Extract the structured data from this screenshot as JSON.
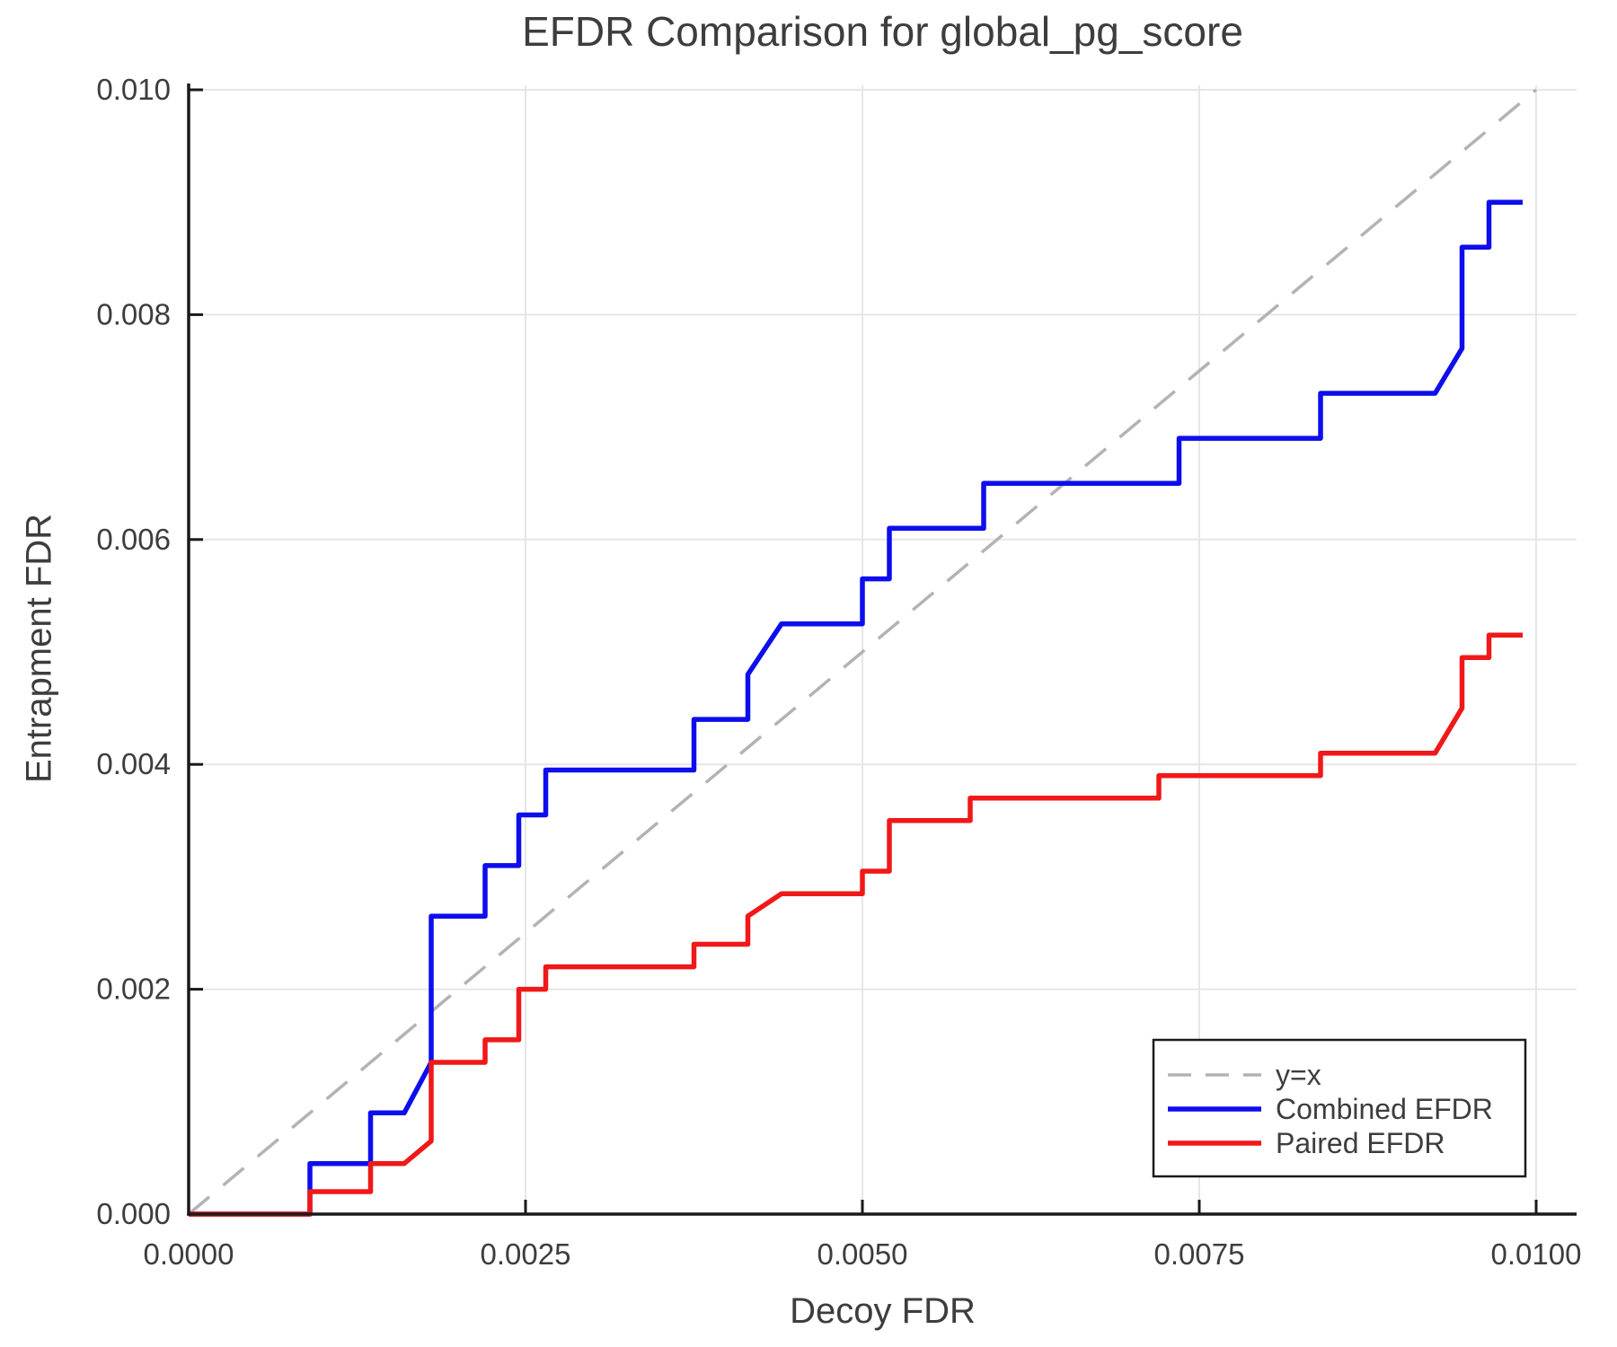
{
  "chart_data": {
    "type": "line",
    "title": "EFDR Comparison for global_pg_score",
    "xlabel": "Decoy FDR",
    "ylabel": "Entrapment FDR",
    "xlim": [
      0,
      0.0103
    ],
    "ylim": [
      0,
      0.01006
    ],
    "grid": true,
    "x_ticks": [
      0.0,
      0.0025,
      0.005,
      0.0075,
      0.01
    ],
    "x_tick_labels": [
      "0.0000",
      "0.0025",
      "0.0050",
      "0.0075",
      "0.0100"
    ],
    "y_ticks": [
      0.0,
      0.002,
      0.004,
      0.006,
      0.008,
      0.01
    ],
    "y_tick_labels": [
      "0.000",
      "0.002",
      "0.004",
      "0.006",
      "0.008",
      "0.010"
    ],
    "legend_position": "lower right",
    "colors": {
      "text": "#3d3d3d",
      "spine": "#1a1a1a",
      "grid": "#e6e6e6",
      "legend_border": "#1a1a1a",
      "identity_line": "#b3b3b3",
      "combined": "#0d0dee",
      "paired": "#f01818"
    },
    "series": [
      {
        "name": "y=x",
        "color": "#b3b3b3",
        "dashed": true,
        "points": [
          [
            0,
            0
          ],
          [
            0.01,
            0.01
          ]
        ]
      },
      {
        "name": "Combined EFDR",
        "color": "#0d0dee",
        "dashed": false,
        "points": [
          [
            0,
            0
          ],
          [
            0.0009,
            0
          ],
          [
            0.0009,
            0.00045
          ],
          [
            0.00135,
            0.00045
          ],
          [
            0.00135,
            0.0009
          ],
          [
            0.0016,
            0.0009
          ],
          [
            0.0018,
            0.00135
          ],
          [
            0.0018,
            0.00265
          ],
          [
            0.0022,
            0.00265
          ],
          [
            0.0022,
            0.0031
          ],
          [
            0.00245,
            0.0031
          ],
          [
            0.00245,
            0.00355
          ],
          [
            0.00265,
            0.00355
          ],
          [
            0.00265,
            0.00395
          ],
          [
            0.00375,
            0.00395
          ],
          [
            0.00375,
            0.0044
          ],
          [
            0.00415,
            0.0044
          ],
          [
            0.00415,
            0.0048
          ],
          [
            0.0044,
            0.00525
          ],
          [
            0.005,
            0.00525
          ],
          [
            0.005,
            0.00565
          ],
          [
            0.0052,
            0.00565
          ],
          [
            0.0052,
            0.0061
          ],
          [
            0.0059,
            0.0061
          ],
          [
            0.0059,
            0.0065
          ],
          [
            0.00735,
            0.0065
          ],
          [
            0.00735,
            0.0069
          ],
          [
            0.0084,
            0.0069
          ],
          [
            0.0084,
            0.0073
          ],
          [
            0.00925,
            0.0073
          ],
          [
            0.00945,
            0.0077
          ],
          [
            0.00945,
            0.0086
          ],
          [
            0.00965,
            0.0086
          ],
          [
            0.00965,
            0.009
          ],
          [
            0.0099,
            0.009
          ]
        ]
      },
      {
        "name": "Paired EFDR",
        "color": "#f01818",
        "dashed": false,
        "points": [
          [
            0,
            0
          ],
          [
            0.0009,
            0
          ],
          [
            0.0009,
            0.0002
          ],
          [
            0.00135,
            0.0002
          ],
          [
            0.00135,
            0.00045
          ],
          [
            0.0016,
            0.00045
          ],
          [
            0.0018,
            0.00065
          ],
          [
            0.0018,
            0.00135
          ],
          [
            0.0022,
            0.00135
          ],
          [
            0.0022,
            0.00155
          ],
          [
            0.00245,
            0.00155
          ],
          [
            0.00245,
            0.002
          ],
          [
            0.00265,
            0.002
          ],
          [
            0.00265,
            0.0022
          ],
          [
            0.00375,
            0.0022
          ],
          [
            0.00375,
            0.0024
          ],
          [
            0.00415,
            0.0024
          ],
          [
            0.00415,
            0.00265
          ],
          [
            0.0044,
            0.00285
          ],
          [
            0.005,
            0.00285
          ],
          [
            0.005,
            0.00305
          ],
          [
            0.0052,
            0.00305
          ],
          [
            0.0052,
            0.0035
          ],
          [
            0.0058,
            0.0035
          ],
          [
            0.0058,
            0.0037
          ],
          [
            0.0072,
            0.0037
          ],
          [
            0.0072,
            0.0039
          ],
          [
            0.0084,
            0.0039
          ],
          [
            0.0084,
            0.0041
          ],
          [
            0.00925,
            0.0041
          ],
          [
            0.00945,
            0.0045
          ],
          [
            0.00945,
            0.00495
          ],
          [
            0.00965,
            0.00495
          ],
          [
            0.00965,
            0.00515
          ],
          [
            0.0099,
            0.00515
          ]
        ]
      }
    ]
  }
}
